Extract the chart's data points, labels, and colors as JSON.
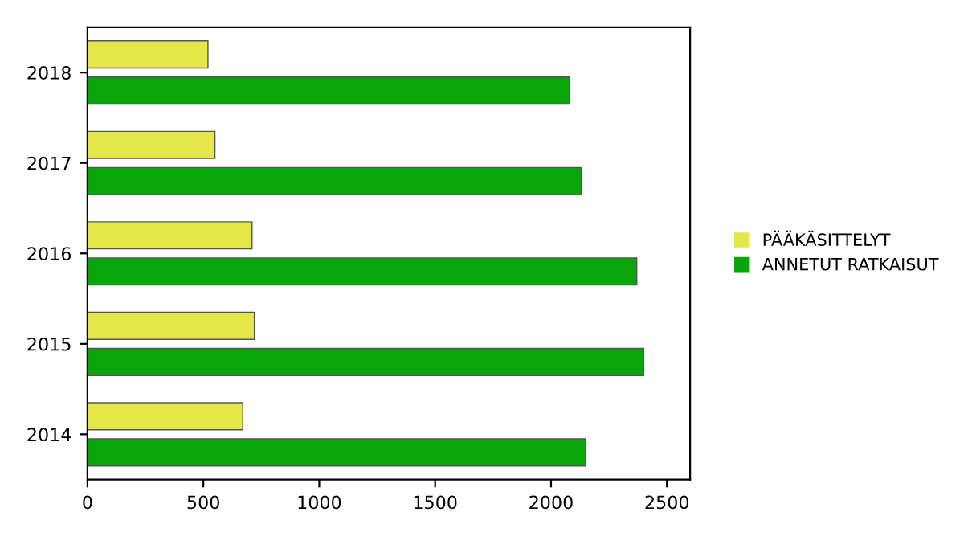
{
  "chart_data": {
    "type": "bar",
    "orientation": "horizontal",
    "categories": [
      "2018",
      "2017",
      "2016",
      "2015",
      "2014"
    ],
    "series": [
      {
        "name": "PÄÄKÄSITTELYT",
        "color": "#e4e64a",
        "values": [
          520,
          550,
          710,
          720,
          670
        ]
      },
      {
        "name": "ANNETUT RATKAISUT",
        "color": "#0aa50a",
        "values": [
          2080,
          2130,
          2370,
          2400,
          2150
        ]
      }
    ],
    "xlim": [
      0,
      2600
    ],
    "xticks": [
      0,
      500,
      1000,
      1500,
      2000,
      2500
    ],
    "legend": "right",
    "grid": false
  }
}
